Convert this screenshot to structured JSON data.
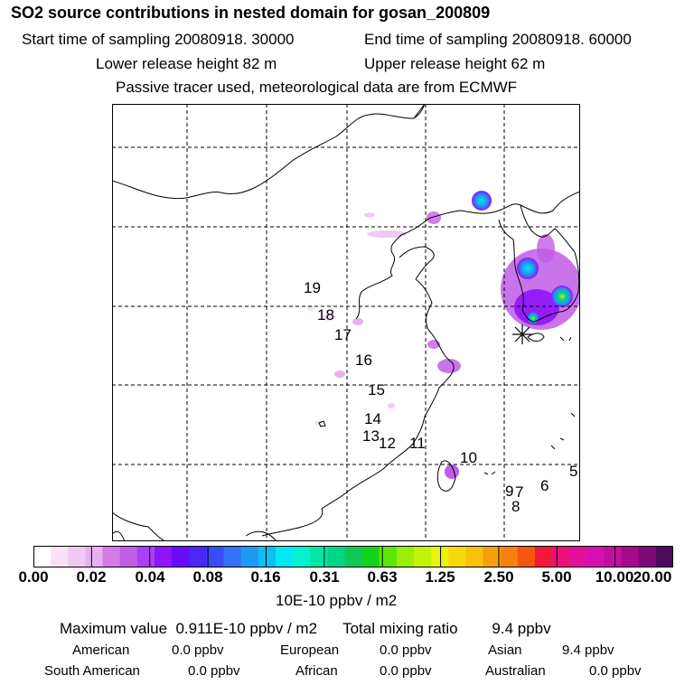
{
  "title": "SO2 source contributions in nested domain for gosan_200809",
  "header": {
    "start_label": "Start time of sampling 20080918. 30000",
    "end_label": "End time of sampling 20080918. 60000",
    "lower_label": "Lower release height   82 m",
    "upper_label": "Upper release height   62 m",
    "note": "Passive tracer used, meteorological data are from ECMWF"
  },
  "map": {
    "trajectory_labels": [
      "19",
      "18",
      "17",
      "16",
      "15",
      "14",
      "13",
      "12",
      "11",
      "10",
      "9",
      "7",
      "8",
      "6",
      "5"
    ],
    "receptor_marker": "asterisk-icon"
  },
  "colorbar": {
    "colors": [
      "#ffffff",
      "#f7e2f7",
      "#f1c8f3",
      "#e9b0ef",
      "#d47be9",
      "#c05ce6",
      "#ad3ff3",
      "#8e14fa",
      "#6a0afa",
      "#4a26f7",
      "#3a4cf7",
      "#3273f5",
      "#1d9af2",
      "#11bdf2",
      "#00e8f2",
      "#00f2cf",
      "#00e6a6",
      "#00d687",
      "#0fc955",
      "#13d31c",
      "#5be60e",
      "#97ef0a",
      "#c2f20a",
      "#e8f20a",
      "#f5d80a",
      "#fac10a",
      "#f79f0a",
      "#f5820a",
      "#f5570f",
      "#f0193c",
      "#ea1078",
      "#e2109a",
      "#d80fb0",
      "#c20fa0",
      "#a50a8c",
      "#7d0a78",
      "#4e0a5c"
    ],
    "tick_labels": [
      "0.00",
      "0.02",
      "0.04",
      "0.08",
      "0.16",
      "0.31",
      "0.63",
      "1.25",
      "2.50",
      "5.00",
      "10.00",
      "20.00"
    ],
    "unit": "10E-10 ppbv / m2"
  },
  "summary": {
    "max_line": "Maximum value  0.911E-10 ppbv / m2      Total mixing ratio        9.4 ppbv",
    "regions": [
      {
        "name": "American",
        "value": "0.0 ppbv"
      },
      {
        "name": "European",
        "value": "0.0 ppbv"
      },
      {
        "name": "Asian",
        "value": "9.4 ppbv"
      },
      {
        "name": "South American",
        "value": "0.0 ppbv"
      },
      {
        "name": "African",
        "value": "0.0 ppbv"
      },
      {
        "name": "Australian",
        "value": "0.0 ppbv"
      }
    ]
  }
}
